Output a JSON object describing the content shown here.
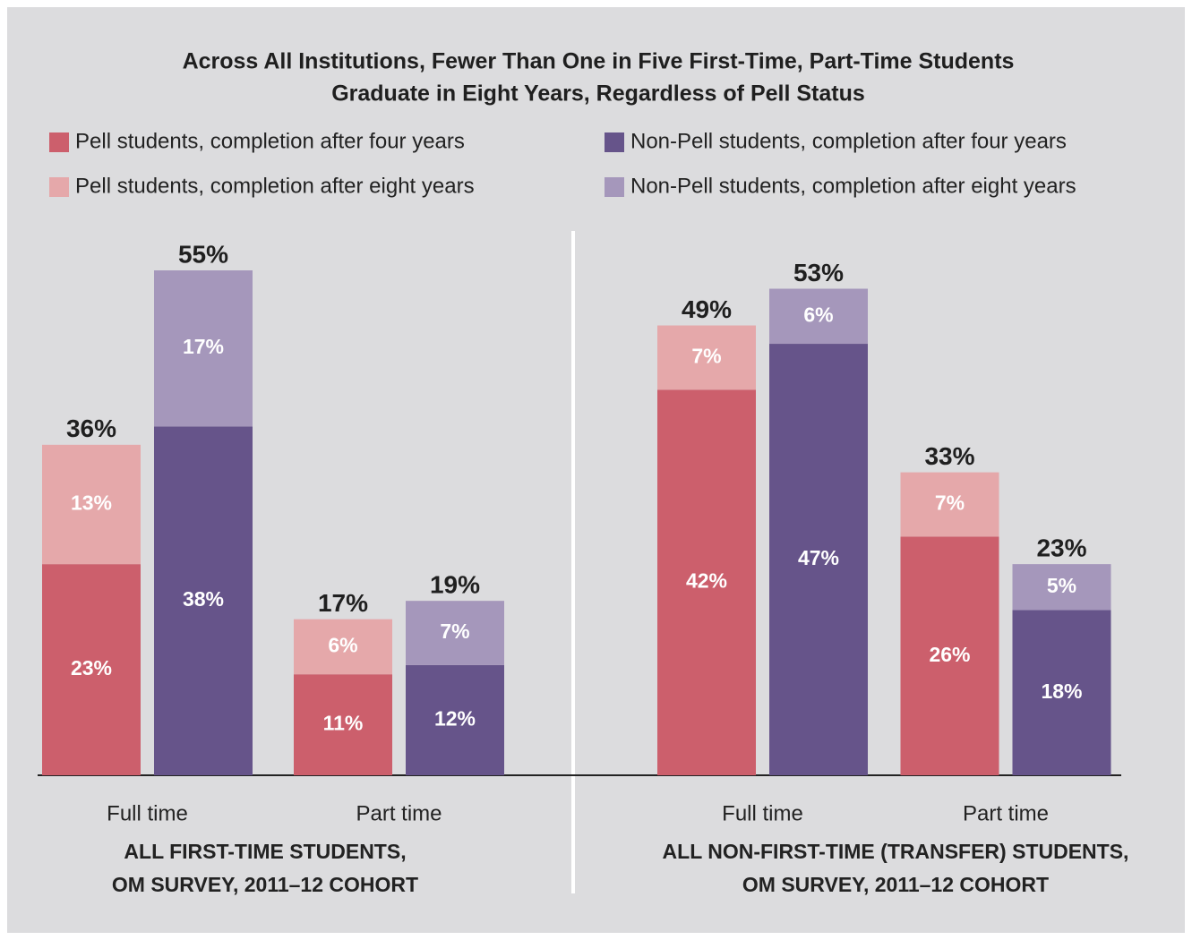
{
  "chart_data": {
    "type": "bar",
    "stacked": true,
    "title": [
      "Across All Institutions, Fewer Than One in Five First-Time, Part-Time Students",
      "Graduate in Eight Years, Regardless of Pell Status"
    ],
    "categories": [
      "Full time",
      "Part time",
      "Full time",
      "Part time"
    ],
    "group_labels": [
      [
        "ALL FIRST-TIME STUDENTS,",
        "OM SURVEY, 2011–12 COHORT"
      ],
      [
        "ALL NON-FIRST-TIME (TRANSFER) STUDENTS,",
        "OM SURVEY, 2011–12 COHORT"
      ]
    ],
    "series": [
      {
        "name": "Pell students, completion after four years",
        "color": "#cc5f6c",
        "stack": 0,
        "values": [
          23,
          11,
          42,
          26
        ],
        "value_labels": [
          "23%",
          "11%",
          "42%",
          "26%"
        ]
      },
      {
        "name": "Pell students, completion after eight years",
        "color": "#e5a8aa",
        "stack": 0,
        "values": [
          13,
          6,
          7,
          7
        ],
        "value_labels": [
          "13%",
          "6%",
          "7%",
          "7%"
        ]
      },
      {
        "name": "Non-Pell students, completion after four years",
        "color": "#66548a",
        "stack": 1,
        "values": [
          38,
          12,
          47,
          18
        ],
        "value_labels": [
          "38%",
          "12%",
          "47%",
          "18%"
        ]
      },
      {
        "name": "Non-Pell students, completion after eight years",
        "color": "#a597bb",
        "stack": 1,
        "values": [
          17,
          7,
          6,
          5
        ],
        "value_labels": [
          "17%",
          "7%",
          "6%",
          "5%"
        ]
      }
    ],
    "totals": [
      [
        36,
        55
      ],
      [
        17,
        19
      ],
      [
        49,
        53
      ],
      [
        33,
        23
      ]
    ],
    "total_labels": [
      [
        "36%",
        "55%"
      ],
      [
        "17%",
        "19%"
      ],
      [
        "49%",
        "53%"
      ],
      [
        "33%",
        "23%"
      ]
    ],
    "ylim": [
      0,
      55
    ]
  }
}
